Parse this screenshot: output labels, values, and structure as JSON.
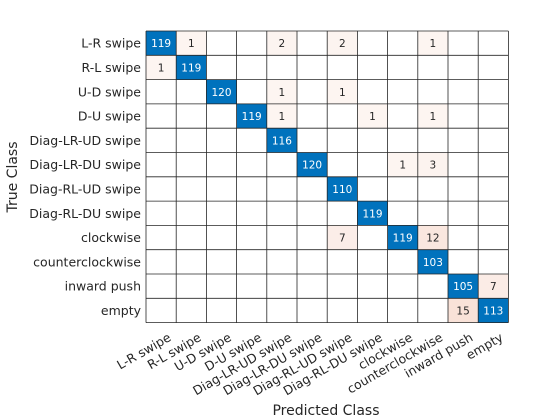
{
  "chart_data": {
    "type": "heatmap",
    "xlabel": "Predicted Class",
    "ylabel": "True Class",
    "classes": [
      "L-R swipe",
      "R-L swipe",
      "U-D swipe",
      "D-U swipe",
      "Diag-LR-UD swipe",
      "Diag-LR-DU swipe",
      "Diag-RL-UD swipe",
      "Diag-RL-DU swipe",
      "clockwise",
      "counterclockwise",
      "inward push",
      "empty"
    ],
    "matrix": [
      [
        119,
        1,
        0,
        0,
        2,
        0,
        2,
        0,
        0,
        1,
        0,
        0
      ],
      [
        1,
        119,
        0,
        0,
        0,
        0,
        0,
        0,
        0,
        0,
        0,
        0
      ],
      [
        0,
        0,
        120,
        0,
        1,
        0,
        1,
        0,
        0,
        0,
        0,
        0
      ],
      [
        0,
        0,
        0,
        119,
        1,
        0,
        0,
        1,
        0,
        1,
        0,
        0
      ],
      [
        0,
        0,
        0,
        0,
        116,
        0,
        0,
        0,
        0,
        0,
        0,
        0
      ],
      [
        0,
        0,
        0,
        0,
        0,
        120,
        0,
        0,
        1,
        3,
        0,
        0
      ],
      [
        0,
        0,
        0,
        0,
        0,
        0,
        110,
        0,
        0,
        0,
        0,
        0
      ],
      [
        0,
        0,
        0,
        0,
        0,
        0,
        0,
        119,
        0,
        0,
        0,
        0
      ],
      [
        0,
        0,
        0,
        0,
        0,
        0,
        7,
        0,
        119,
        12,
        0,
        0
      ],
      [
        0,
        0,
        0,
        0,
        0,
        0,
        0,
        0,
        0,
        103,
        0,
        0
      ],
      [
        0,
        0,
        0,
        0,
        0,
        0,
        0,
        0,
        0,
        0,
        105,
        7
      ],
      [
        0,
        0,
        0,
        0,
        0,
        0,
        0,
        0,
        0,
        0,
        15,
        113
      ]
    ],
    "colors": {
      "diagonal": "#0072BD",
      "off_diagonal_tint": "#D95319",
      "grid": "#262626",
      "diagonal_text": "#ffffff",
      "off_diagonal_text": "#262626"
    }
  }
}
